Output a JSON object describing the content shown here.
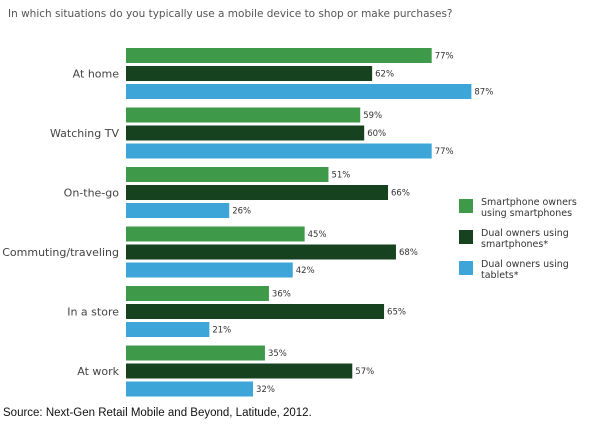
{
  "chart_data": {
    "type": "bar",
    "orientation": "horizontal",
    "title": "In which situations do you typically use a mobile device to shop or make purchases?",
    "categories": [
      "At home",
      "Watching TV",
      "On-the-go",
      "Commuting/traveling",
      "In a store",
      "At work"
    ],
    "series": [
      {
        "name": "Smartphone owners using smartphones",
        "name_lines": [
          "Smartphone owners",
          "using smartphones"
        ],
        "color": "#3e9a48",
        "values": [
          77,
          59,
          51,
          45,
          36,
          35
        ]
      },
      {
        "name": "Dual owners using smartphones*",
        "name_lines": [
          "Dual owners using",
          "smartphones*"
        ],
        "color": "#17421f",
        "values": [
          62,
          60,
          66,
          68,
          65,
          57
        ]
      },
      {
        "name": "Dual owners using tablets*",
        "name_lines": [
          "Dual owners using",
          "tablets*"
        ],
        "color": "#3da5d8",
        "values": [
          87,
          77,
          26,
          42,
          21,
          32
        ]
      }
    ],
    "value_suffix": "%",
    "xlim": [
      0,
      100
    ],
    "legend_position": "right",
    "grid": false
  },
  "source": "Source: Next-Gen Retail Mobile and Beyond, Latitude, 2012."
}
